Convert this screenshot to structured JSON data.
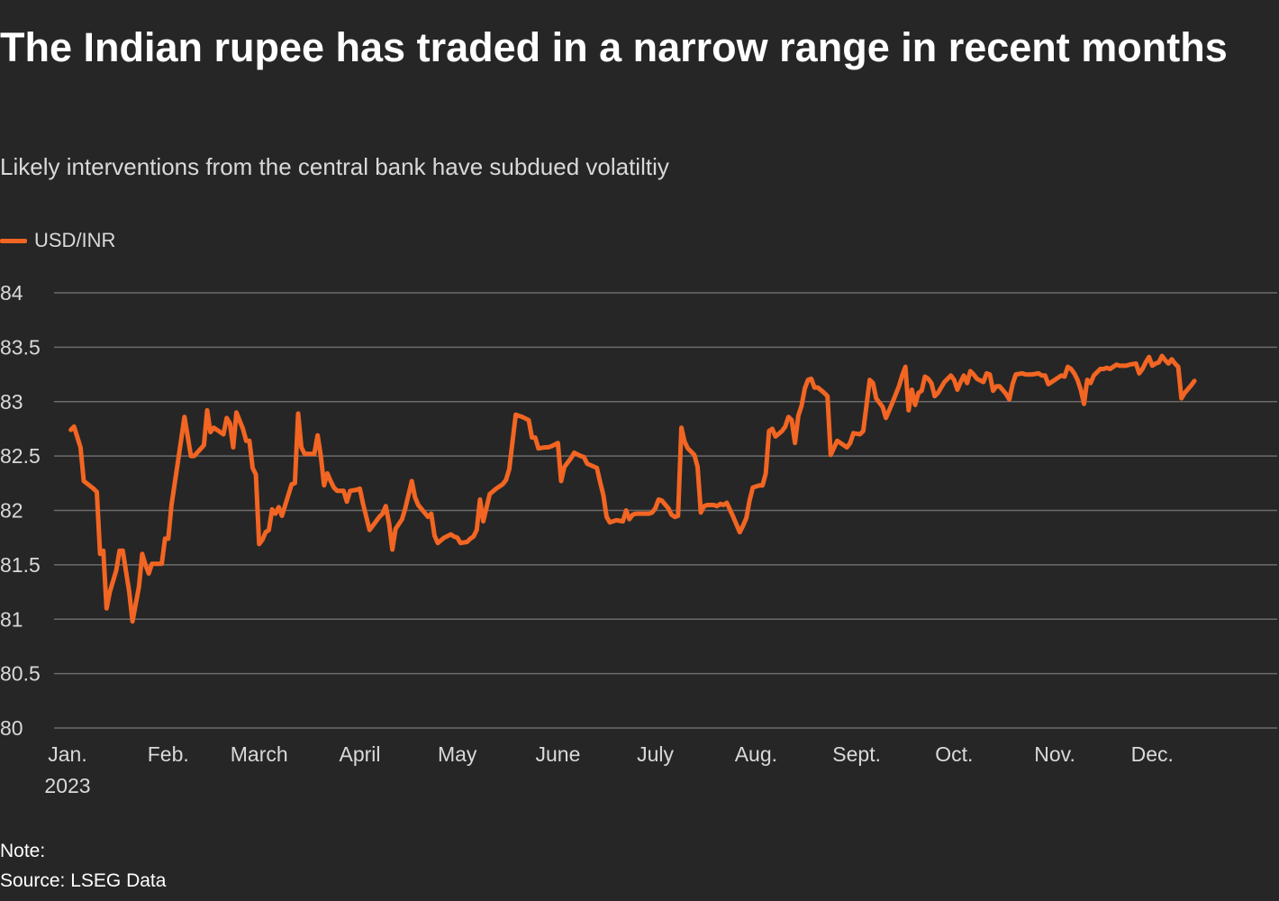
{
  "colors": {
    "background": "#262626",
    "line": "#f26522",
    "grid": "#6b6b6b",
    "text": "#d9d9d9"
  },
  "header": {
    "title": "The Indian rupee has traded in a narrow range in recent months",
    "subtitle": "Likely interventions from the central bank have subdued volatiltiy"
  },
  "footer": {
    "note": "Note:",
    "source": "Source: LSEG Data"
  },
  "chart_data": {
    "type": "line",
    "title": "The Indian rupee has traded in a narrow range in recent months",
    "subtitle": "Likely interventions from the central bank have subdued volatiltiy",
    "xlabel": "",
    "ylabel": "",
    "ylim": [
      80,
      84
    ],
    "yticks": [
      {
        "value": 80,
        "label": "80"
      },
      {
        "value": 80.5,
        "label": "80.5"
      },
      {
        "value": 81,
        "label": "81"
      },
      {
        "value": 81.5,
        "label": "81.5"
      },
      {
        "value": 82,
        "label": "82"
      },
      {
        "value": 82.5,
        "label": "82.5"
      },
      {
        "value": 83,
        "label": "83"
      },
      {
        "value": 83.5,
        "label": "83.5"
      },
      {
        "value": 84,
        "label": "84"
      }
    ],
    "xlim": [
      1,
      361
    ],
    "xticks": [
      {
        "day": 1,
        "label": "Jan.",
        "sublabel": "2023"
      },
      {
        "day": 32,
        "label": "Feb."
      },
      {
        "day": 60,
        "label": "March"
      },
      {
        "day": 91,
        "label": "April"
      },
      {
        "day": 121,
        "label": "May"
      },
      {
        "day": 152,
        "label": "June"
      },
      {
        "day": 182,
        "label": "July"
      },
      {
        "day": 213,
        "label": "Aug."
      },
      {
        "day": 244,
        "label": "Sept."
      },
      {
        "day": 274,
        "label": "Oct."
      },
      {
        "day": 305,
        "label": "Nov."
      },
      {
        "day": 335,
        "label": "Dec."
      }
    ],
    "legend": {
      "position": "top-left"
    },
    "series": [
      {
        "name": "USD/INR",
        "x_unit": "day of year 2023",
        "points": [
          [
            2,
            82.74
          ],
          [
            3,
            82.77
          ],
          [
            5,
            82.58
          ],
          [
            6,
            82.27
          ],
          [
            9,
            82.2
          ],
          [
            10,
            82.17
          ],
          [
            11,
            81.6
          ],
          [
            12,
            81.63
          ],
          [
            13,
            81.1
          ],
          [
            14,
            81.25
          ],
          [
            16,
            81.45
          ],
          [
            17,
            81.63
          ],
          [
            18,
            81.63
          ],
          [
            20,
            81.25
          ],
          [
            21,
            80.98
          ],
          [
            23,
            81.3
          ],
          [
            24,
            81.6
          ],
          [
            25,
            81.5
          ],
          [
            26,
            81.42
          ],
          [
            27,
            81.51
          ],
          [
            30,
            81.51
          ],
          [
            31,
            81.74
          ],
          [
            32,
            81.74
          ],
          [
            33,
            82.05
          ],
          [
            35,
            82.45
          ],
          [
            37,
            82.86
          ],
          [
            39,
            82.5
          ],
          [
            40,
            82.5
          ],
          [
            43,
            82.6
          ],
          [
            44,
            82.92
          ],
          [
            45,
            82.72
          ],
          [
            46,
            82.76
          ],
          [
            48,
            82.72
          ],
          [
            49,
            82.7
          ],
          [
            50,
            82.85
          ],
          [
            51,
            82.8
          ],
          [
            52,
            82.58
          ],
          [
            53,
            82.9
          ],
          [
            55,
            82.75
          ],
          [
            56,
            82.64
          ],
          [
            57,
            82.64
          ],
          [
            58,
            82.39
          ],
          [
            59,
            82.33
          ],
          [
            60,
            81.69
          ],
          [
            61,
            81.73
          ],
          [
            62,
            81.8
          ],
          [
            63,
            81.82
          ],
          [
            64,
            82.01
          ],
          [
            65,
            81.97
          ],
          [
            66,
            82.03
          ],
          [
            67,
            81.95
          ],
          [
            70,
            82.24
          ],
          [
            71,
            82.25
          ],
          [
            72,
            82.89
          ],
          [
            73,
            82.58
          ],
          [
            74,
            82.52
          ],
          [
            76,
            82.52
          ],
          [
            77,
            82.52
          ],
          [
            78,
            82.69
          ],
          [
            79,
            82.5
          ],
          [
            80,
            82.23
          ],
          [
            81,
            82.34
          ],
          [
            82,
            82.27
          ],
          [
            83,
            82.21
          ],
          [
            84,
            82.18
          ],
          [
            86,
            82.18
          ],
          [
            87,
            82.08
          ],
          [
            88,
            82.18
          ],
          [
            90,
            82.19
          ],
          [
            91,
            82.2
          ],
          [
            92,
            82.06
          ],
          [
            94,
            81.82
          ],
          [
            96,
            81.9
          ],
          [
            97,
            81.94
          ],
          [
            98,
            81.97
          ],
          [
            99,
            82.04
          ],
          [
            100,
            81.88
          ],
          [
            101,
            81.64
          ],
          [
            102,
            81.83
          ],
          [
            104,
            81.92
          ],
          [
            105,
            82.02
          ],
          [
            107,
            82.27
          ],
          [
            108,
            82.12
          ],
          [
            109,
            82.05
          ],
          [
            112,
            81.94
          ],
          [
            113,
            81.97
          ],
          [
            114,
            81.77
          ],
          [
            115,
            81.7
          ],
          [
            117,
            81.75
          ],
          [
            119,
            81.78
          ],
          [
            120,
            81.76
          ],
          [
            121,
            81.75
          ],
          [
            122,
            81.7
          ],
          [
            124,
            81.71
          ],
          [
            125,
            81.74
          ],
          [
            126,
            81.76
          ],
          [
            127,
            81.82
          ],
          [
            128,
            82.1
          ],
          [
            129,
            81.9
          ],
          [
            131,
            82.15
          ],
          [
            133,
            82.2
          ],
          [
            135,
            82.24
          ],
          [
            136,
            82.28
          ],
          [
            137,
            82.38
          ],
          [
            139,
            82.88
          ],
          [
            141,
            82.86
          ],
          [
            143,
            82.83
          ],
          [
            144,
            82.67
          ],
          [
            145,
            82.67
          ],
          [
            146,
            82.57
          ],
          [
            148,
            82.58
          ],
          [
            149,
            82.58
          ],
          [
            150,
            82.59
          ],
          [
            152,
            82.62
          ],
          [
            153,
            82.27
          ],
          [
            154,
            82.4
          ],
          [
            156,
            82.48
          ],
          [
            157,
            82.53
          ],
          [
            159,
            82.5
          ],
          [
            160,
            82.49
          ],
          [
            161,
            82.43
          ],
          [
            164,
            82.39
          ],
          [
            165,
            82.26
          ],
          [
            166,
            82.14
          ],
          [
            167,
            81.94
          ],
          [
            168,
            81.89
          ],
          [
            170,
            81.91
          ],
          [
            172,
            81.9
          ],
          [
            173,
            82.0
          ],
          [
            174,
            81.92
          ],
          [
            175,
            81.96
          ],
          [
            176,
            81.97
          ],
          [
            177,
            81.97
          ],
          [
            179,
            81.97
          ],
          [
            180,
            81.97
          ],
          [
            181,
            81.98
          ],
          [
            182,
            82.02
          ],
          [
            183,
            82.1
          ],
          [
            184,
            82.09
          ],
          [
            186,
            82.02
          ],
          [
            187,
            81.96
          ],
          [
            188,
            81.94
          ],
          [
            189,
            81.95
          ],
          [
            190,
            82.76
          ],
          [
            191,
            82.63
          ],
          [
            192,
            82.57
          ],
          [
            194,
            82.51
          ],
          [
            195,
            82.4
          ],
          [
            196,
            81.98
          ],
          [
            197,
            82.04
          ],
          [
            198,
            82.05
          ],
          [
            200,
            82.05
          ],
          [
            201,
            82.04
          ],
          [
            202,
            82.06
          ],
          [
            203,
            82.05
          ],
          [
            204,
            82.07
          ],
          [
            206,
            81.94
          ],
          [
            208,
            81.8
          ],
          [
            209,
            81.86
          ],
          [
            210,
            81.93
          ],
          [
            211,
            82.09
          ],
          [
            212,
            82.21
          ],
          [
            214,
            82.23
          ],
          [
            215,
            82.23
          ],
          [
            216,
            82.34
          ],
          [
            217,
            82.73
          ],
          [
            218,
            82.75
          ],
          [
            219,
            82.68
          ],
          [
            221,
            82.73
          ],
          [
            222,
            82.77
          ],
          [
            223,
            82.86
          ],
          [
            224,
            82.83
          ],
          [
            225,
            82.62
          ],
          [
            226,
            82.87
          ],
          [
            227,
            82.96
          ],
          [
            228,
            83.12
          ],
          [
            229,
            83.2
          ],
          [
            230,
            83.21
          ],
          [
            231,
            83.13
          ],
          [
            232,
            83.13
          ],
          [
            234,
            83.08
          ],
          [
            235,
            83.05
          ],
          [
            236,
            82.51
          ],
          [
            238,
            82.64
          ],
          [
            240,
            82.6
          ],
          [
            241,
            82.58
          ],
          [
            242,
            82.62
          ],
          [
            243,
            82.71
          ],
          [
            245,
            82.7
          ],
          [
            246,
            82.73
          ],
          [
            248,
            83.2
          ],
          [
            249,
            83.17
          ],
          [
            250,
            83.03
          ],
          [
            252,
            82.95
          ],
          [
            253,
            82.85
          ],
          [
            255,
            82.99
          ],
          [
            257,
            83.14
          ],
          [
            258,
            83.24
          ],
          [
            259,
            83.32
          ],
          [
            260,
            82.92
          ],
          [
            261,
            83.11
          ],
          [
            262,
            82.97
          ],
          [
            263,
            83.08
          ],
          [
            264,
            83.1
          ],
          [
            265,
            83.23
          ],
          [
            266,
            83.21
          ],
          [
            267,
            83.17
          ],
          [
            268,
            83.05
          ],
          [
            269,
            83.08
          ],
          [
            271,
            83.18
          ],
          [
            273,
            83.24
          ],
          [
            274,
            83.2
          ],
          [
            275,
            83.11
          ],
          [
            276,
            83.18
          ],
          [
            277,
            83.24
          ],
          [
            278,
            83.17
          ],
          [
            279,
            83.28
          ],
          [
            280,
            83.25
          ],
          [
            281,
            83.21
          ],
          [
            283,
            83.18
          ],
          [
            284,
            83.26
          ],
          [
            285,
            83.25
          ],
          [
            286,
            83.1
          ],
          [
            287,
            83.14
          ],
          [
            288,
            83.14
          ],
          [
            290,
            83.07
          ],
          [
            291,
            83.02
          ],
          [
            292,
            83.16
          ],
          [
            293,
            83.25
          ],
          [
            295,
            83.26
          ],
          [
            296,
            83.25
          ],
          [
            298,
            83.25
          ],
          [
            300,
            83.26
          ],
          [
            301,
            83.24
          ],
          [
            302,
            83.24
          ],
          [
            303,
            83.16
          ],
          [
            304,
            83.18
          ],
          [
            306,
            83.22
          ],
          [
            307,
            83.24
          ],
          [
            308,
            83.23
          ],
          [
            309,
            83.32
          ],
          [
            310,
            83.3
          ],
          [
            311,
            83.26
          ],
          [
            312,
            83.2
          ],
          [
            313,
            83.11
          ],
          [
            314,
            82.98
          ],
          [
            315,
            83.2
          ],
          [
            316,
            83.17
          ],
          [
            317,
            83.24
          ],
          [
            319,
            83.3
          ],
          [
            320,
            83.3
          ],
          [
            321,
            83.31
          ],
          [
            322,
            83.3
          ],
          [
            323,
            83.32
          ],
          [
            324,
            83.34
          ],
          [
            325,
            83.33
          ],
          [
            327,
            83.33
          ],
          [
            328,
            83.34
          ],
          [
            330,
            83.35
          ],
          [
            331,
            83.26
          ],
          [
            332,
            83.3
          ],
          [
            333,
            83.36
          ],
          [
            334,
            83.41
          ],
          [
            335,
            83.33
          ],
          [
            336,
            83.35
          ],
          [
            337,
            83.36
          ],
          [
            338,
            83.42
          ],
          [
            339,
            83.38
          ],
          [
            340,
            83.35
          ],
          [
            341,
            83.39
          ],
          [
            342,
            83.35
          ],
          [
            343,
            83.32
          ],
          [
            344,
            83.03
          ],
          [
            345,
            83.08
          ],
          [
            347,
            83.15
          ],
          [
            348,
            83.19
          ]
        ]
      }
    ]
  }
}
